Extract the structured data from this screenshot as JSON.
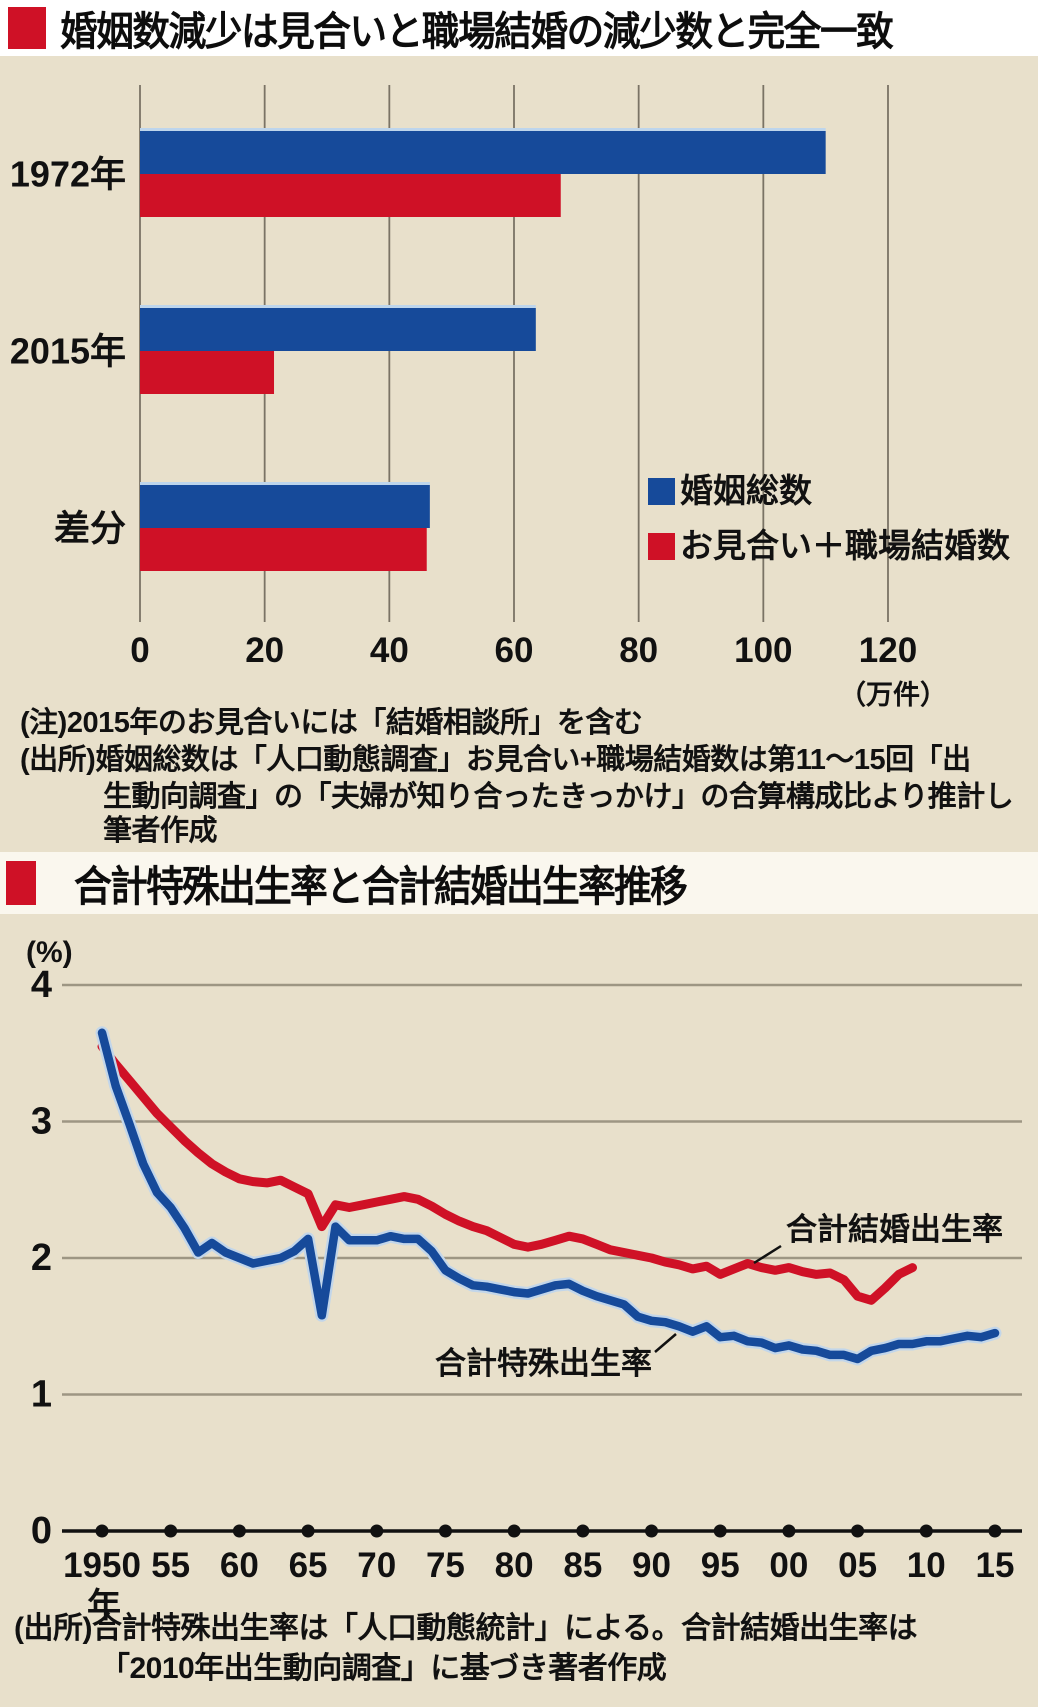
{
  "page": {
    "background": "#e8e0cb",
    "title_band_bg": "#ffffff",
    "accent_red": "#cf1126",
    "series_blue": "#164a9a",
    "text_color": "#111111"
  },
  "chart1": {
    "title": "婚姻数減少は見合いと職場結婚の減少数と完全一致",
    "notes": [
      "(注)2015年のお見合いには「結婚相談所」を含む",
      "(出所)婚姻総数は「人口動態調査」お見合い+職場結婚数は第11〜15回「出",
      "生動向調査」の「夫婦が知り合ったきっかけ」の合算構成比より推計し",
      "筆者作成"
    ]
  },
  "chart2": {
    "title": "合計特殊出生率と合計結婚出生率推移",
    "source": [
      "(出所)合計特殊出生率は「人口動態統計」による。合計結婚出生率は",
      "「2010年出生動向調査」に基づき著者作成"
    ]
  },
  "chart_data": [
    {
      "type": "bar",
      "orientation": "horizontal",
      "title": "婚姻数減少は見合いと職場結婚の減少数と完全一致",
      "categories": [
        "1972年",
        "2015年",
        "差分"
      ],
      "series": [
        {
          "key": "total",
          "name": "婚姻総数",
          "color": "#164a9a",
          "values": [
            110,
            63.5,
            46.5
          ]
        },
        {
          "key": "miai_workplace",
          "name": "お見合い＋職場結婚数",
          "color": "#cf1126",
          "values": [
            67.5,
            21.5,
            46
          ]
        }
      ],
      "xlim": [
        0,
        120
      ],
      "xticks": [
        0,
        20,
        40,
        60,
        80,
        100,
        120
      ],
      "unit": "（万件）",
      "grid": "vertical",
      "legend_position": "right-middle"
    },
    {
      "type": "line",
      "title": "合計特殊出生率と合計結婚出生率推移",
      "ylabel": "(%)",
      "x_unit": "年",
      "ylim": [
        0,
        4
      ],
      "yticks": [
        0,
        1,
        2,
        3,
        4
      ],
      "xticks": [
        {
          "year": 1950,
          "label": "1950"
        },
        {
          "year": 1955,
          "label": "55"
        },
        {
          "year": 1960,
          "label": "60"
        },
        {
          "year": 1965,
          "label": "65"
        },
        {
          "year": 1970,
          "label": "70"
        },
        {
          "year": 1975,
          "label": "75"
        },
        {
          "year": 1980,
          "label": "80"
        },
        {
          "year": 1985,
          "label": "85"
        },
        {
          "year": 1990,
          "label": "90"
        },
        {
          "year": 1995,
          "label": "95"
        },
        {
          "year": 2000,
          "label": "00"
        },
        {
          "year": 2005,
          "label": "05"
        },
        {
          "year": 2010,
          "label": "10"
        },
        {
          "year": 2015,
          "label": "15"
        }
      ],
      "series": [
        {
          "key": "marital",
          "name": "合計結婚出生率",
          "color": "#cf1126",
          "start_year": 1950,
          "values": [
            3.55,
            3.42,
            3.3,
            3.18,
            3.06,
            2.96,
            2.86,
            2.77,
            2.69,
            2.63,
            2.58,
            2.56,
            2.55,
            2.57,
            2.52,
            2.47,
            2.23,
            2.39,
            2.37,
            2.39,
            2.41,
            2.43,
            2.45,
            2.43,
            2.38,
            2.32,
            2.27,
            2.23,
            2.2,
            2.15,
            2.1,
            2.08,
            2.1,
            2.13,
            2.16,
            2.14,
            2.1,
            2.06,
            2.04,
            2.02,
            2.0,
            1.97,
            1.95,
            1.92,
            1.94,
            1.88,
            1.92,
            1.96,
            1.93,
            1.91,
            1.93,
            1.9,
            1.88,
            1.89,
            1.84,
            1.72,
            1.69,
            1.78,
            1.88,
            1.93
          ]
        },
        {
          "key": "tfr",
          "name": "合計特殊出生率",
          "color": "#164a9a",
          "start_year": 1950,
          "values": [
            3.65,
            3.26,
            2.98,
            2.69,
            2.48,
            2.37,
            2.22,
            2.04,
            2.11,
            2.04,
            2.0,
            1.96,
            1.98,
            2.0,
            2.05,
            2.14,
            1.58,
            2.23,
            2.13,
            2.13,
            2.13,
            2.16,
            2.14,
            2.14,
            2.05,
            1.91,
            1.85,
            1.8,
            1.79,
            1.77,
            1.75,
            1.74,
            1.77,
            1.8,
            1.81,
            1.76,
            1.72,
            1.69,
            1.66,
            1.57,
            1.54,
            1.53,
            1.5,
            1.46,
            1.5,
            1.42,
            1.43,
            1.39,
            1.38,
            1.34,
            1.36,
            1.33,
            1.32,
            1.29,
            1.29,
            1.26,
            1.32,
            1.34,
            1.37,
            1.37,
            1.39,
            1.39,
            1.41,
            1.43,
            1.42,
            1.45
          ]
        }
      ],
      "annotations": [
        {
          "text": "合計結婚出生率",
          "series": "marital"
        },
        {
          "text": "合計特殊出生率",
          "series": "tfr"
        }
      ]
    }
  ]
}
